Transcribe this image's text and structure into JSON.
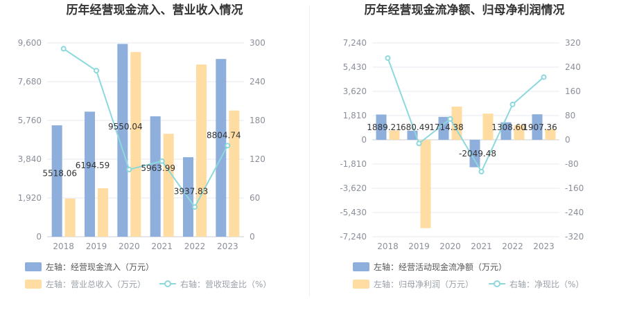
{
  "colors": {
    "bar_primary": "#8eaedc",
    "bar_secondary": "#ffdca2",
    "line": "#8dd8dc",
    "grid": "#e6e9f0",
    "axis": "#c9ced6"
  },
  "chart_data": [
    {
      "type": "bar",
      "title": "历年经营现金流入、营业收入情况",
      "categories": [
        "2018",
        "2019",
        "2020",
        "2021",
        "2022",
        "2023"
      ],
      "series": [
        {
          "name": "左轴：经营现金流入（万元）",
          "axis": "left",
          "type": "bar",
          "values": [
            5518.06,
            6194.59,
            9550.04,
            5963.99,
            3937.83,
            8804.74
          ],
          "labels": [
            "5518.06",
            "6194.59",
            "9550.04",
            "5963.99",
            "3937.83",
            "8804.74"
          ]
        },
        {
          "name": "左轴：营业总收入（万元）",
          "axis": "left",
          "type": "bar",
          "values": [
            1890,
            2400,
            9150,
            5100,
            8530,
            6250
          ]
        },
        {
          "name": "右轴：营收现金比（%）",
          "axis": "right",
          "type": "line",
          "values": [
            291,
            257,
            104,
            117,
            46,
            141
          ]
        }
      ],
      "left_axis": {
        "ylim": [
          0,
          9600
        ],
        "ticks": [
          "0",
          "1,920",
          "3,840",
          "5,760",
          "7,680",
          "9,600"
        ]
      },
      "right_axis": {
        "ylim": [
          0,
          300
        ],
        "ticks": [
          "0",
          "60",
          "120",
          "180",
          "240",
          "300"
        ]
      },
      "legend_position": "bottom-left"
    },
    {
      "type": "bar",
      "title": "历年经营现金流净额、归母净利润情况",
      "categories": [
        "2018",
        "2019",
        "2020",
        "2021",
        "2022",
        "2023"
      ],
      "series": [
        {
          "name": "左轴：经营活动现金流净额（万元）",
          "axis": "left",
          "type": "bar",
          "values": [
            1889.21,
            680.49,
            1714.38,
            -2049.48,
            1308.6,
            1907.36
          ],
          "labels": [
            "1889.21",
            "680.49",
            "1714.38",
            "-2049.48",
            "1308.60",
            "1907.36"
          ]
        },
        {
          "name": "左轴：归母净利润（万元）",
          "axis": "left",
          "type": "bar",
          "values": [
            700,
            -6600,
            2480,
            1960,
            1100,
            800
          ]
        },
        {
          "name": "右轴：净现比（%）",
          "axis": "right",
          "type": "line",
          "values": [
            270,
            -12,
            69,
            -105,
            117,
            207
          ]
        }
      ],
      "left_axis": {
        "ylim": [
          -7240,
          7240
        ],
        "ticks": [
          "-7,240",
          "-5,430",
          "-3,620",
          "-1,810",
          "0",
          "1,810",
          "3,620",
          "5,430",
          "7,240"
        ]
      },
      "right_axis": {
        "ylim": [
          -320,
          320
        ],
        "ticks": [
          "-320",
          "-240",
          "-160",
          "-80",
          "0",
          "80",
          "160",
          "240",
          "320"
        ]
      },
      "legend_position": "bottom-left"
    }
  ]
}
